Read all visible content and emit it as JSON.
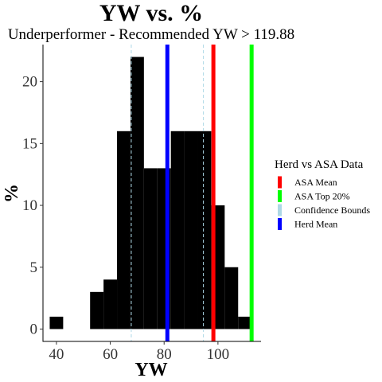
{
  "chart_data": {
    "type": "bar",
    "title": "YW  vs.  %",
    "subtitle": "Underperformer - Recommended  YW > 119.88",
    "xlabel": "YW",
    "ylabel": "%",
    "xlim": [
      35,
      116
    ],
    "ylim": [
      -1,
      23
    ],
    "xticks": [
      40,
      60,
      80,
      100
    ],
    "yticks": [
      0,
      5,
      10,
      15,
      20
    ],
    "bins": [
      {
        "x0": 37.5,
        "x1": 42.5,
        "value": 1
      },
      {
        "x0": 42.5,
        "x1": 47.5,
        "value": 0
      },
      {
        "x0": 47.5,
        "x1": 52.5,
        "value": 0
      },
      {
        "x0": 52.5,
        "x1": 57.5,
        "value": 3
      },
      {
        "x0": 57.5,
        "x1": 62.5,
        "value": 4
      },
      {
        "x0": 62.5,
        "x1": 67.5,
        "value": 16
      },
      {
        "x0": 67.5,
        "x1": 72.5,
        "value": 22
      },
      {
        "x0": 72.5,
        "x1": 77.5,
        "value": 13
      },
      {
        "x0": 77.5,
        "x1": 82.5,
        "value": 13
      },
      {
        "x0": 82.5,
        "x1": 87.5,
        "value": 16
      },
      {
        "x0": 87.5,
        "x1": 92.5,
        "value": 16
      },
      {
        "x0": 92.5,
        "x1": 97.5,
        "value": 16
      },
      {
        "x0": 97.5,
        "x1": 102.5,
        "value": 10
      },
      {
        "x0": 102.5,
        "x1": 107.5,
        "value": 5
      },
      {
        "x0": 107.5,
        "x1": 112.5,
        "value": 1
      }
    ],
    "bar_color": "#000000",
    "reference_lines": [
      {
        "key": "asa_mean",
        "x": 98.3,
        "color": "#ff0000",
        "style": "solid"
      },
      {
        "key": "asa_top20",
        "x": 112.5,
        "color": "#00ff00",
        "style": "solid"
      },
      {
        "key": "conf_low",
        "x": 67.8,
        "color": "#add8e6",
        "style": "dashed"
      },
      {
        "key": "conf_high",
        "x": 94.6,
        "color": "#add8e6",
        "style": "dashed"
      },
      {
        "key": "herd_mean",
        "x": 81.2,
        "color": "#0000ff",
        "style": "solid"
      }
    ],
    "legend": {
      "title": "Herd vs ASA Data",
      "position": "right",
      "items": [
        {
          "label": "ASA Mean",
          "color": "#ff0000"
        },
        {
          "label": "ASA Top 20%",
          "color": "#00ff00"
        },
        {
          "label": "Confidence Bounds",
          "color": "#add8e6"
        },
        {
          "label": "Herd Mean",
          "color": "#0000ff"
        }
      ]
    },
    "grid": false
  }
}
